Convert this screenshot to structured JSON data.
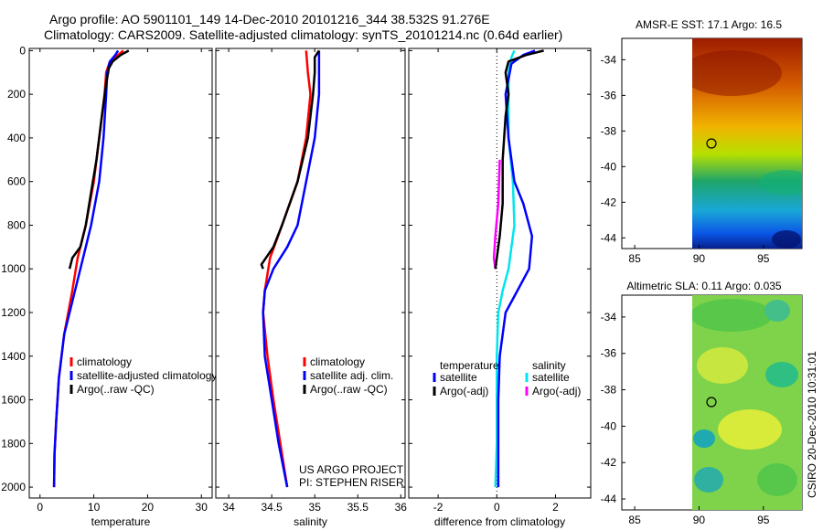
{
  "header": {
    "line1": "Argo profile: AO 5901101_149 14-Dec-2010 20101216_344 38.532S 91.276E",
    "line2": "Climatology: CARS2009. Satellite-adjusted climatology: synTS_20101214.nc (0.64d earlier)"
  },
  "side_label": "CSIRO 20-Dec-2010 10:31:01",
  "project": {
    "line1": "US ARGO PROJECT",
    "line2": "PI: STEPHEN RISER"
  },
  "colors": {
    "climatology": "#ff0000",
    "satellite": "#0000ff",
    "argo": "#000000",
    "satellite_sal": "#00e5ee",
    "argo_sal": "#ff00ff"
  },
  "chart_data": [
    {
      "type": "line",
      "name": "temperature",
      "xlabel": "temperature",
      "ylabel": "",
      "xlim": [
        -2,
        32
      ],
      "ylim": [
        2050,
        -10
      ],
      "xticks": [
        "0",
        "10",
        "20",
        "30"
      ],
      "yticks": [
        "0",
        "200",
        "400",
        "600",
        "800",
        "1000",
        "1200",
        "1400",
        "1600",
        "1800",
        "2000"
      ],
      "legend": [
        "climatology",
        "satellite-adjusted climatology",
        "Argo(..raw -QC)"
      ],
      "series": [
        {
          "name": "climatology",
          "color": "#ff0000",
          "points": [
            [
              15.5,
              0
            ],
            [
              14.5,
              20
            ],
            [
              13,
              50
            ],
            [
              12.3,
              100
            ],
            [
              12,
              200
            ],
            [
              11,
              400
            ],
            [
              10,
              600
            ],
            [
              8.5,
              800
            ],
            [
              7,
              950
            ],
            [
              6,
              1100
            ],
            [
              4.5,
              1300
            ],
            [
              3.5,
              1500
            ],
            [
              3,
              1700
            ],
            [
              2.7,
              1850
            ],
            [
              2.6,
              2000
            ]
          ]
        },
        {
          "name": "satellite-adjusted",
          "color": "#0000ff",
          "points": [
            [
              14.5,
              0
            ],
            [
              14,
              20
            ],
            [
              13,
              50
            ],
            [
              12.5,
              100
            ],
            [
              12.3,
              200
            ],
            [
              11.8,
              400
            ],
            [
              11,
              600
            ],
            [
              9.5,
              800
            ],
            [
              8.5,
              900
            ],
            [
              7.5,
              1000
            ],
            [
              6,
              1150
            ],
            [
              4.5,
              1300
            ],
            [
              3.5,
              1500
            ],
            [
              3,
              1700
            ],
            [
              2.7,
              1850
            ],
            [
              2.6,
              2000
            ]
          ]
        },
        {
          "name": "Argo",
          "color": "#000000",
          "points": [
            [
              16.5,
              0
            ],
            [
              15,
              20
            ],
            [
              13.5,
              50
            ],
            [
              12.8,
              80
            ],
            [
              12.3,
              150
            ],
            [
              11.5,
              300
            ],
            [
              10.5,
              500
            ],
            [
              9.5,
              650
            ],
            [
              8.5,
              800
            ],
            [
              7.5,
              900
            ],
            [
              6,
              950
            ],
            [
              5.5,
              1000
            ]
          ]
        }
      ]
    },
    {
      "type": "line",
      "name": "salinity",
      "xlabel": "salinity",
      "ylabel": "",
      "xlim": [
        33.85,
        36.05
      ],
      "ylim": [
        2050,
        -10
      ],
      "xticks": [
        "34",
        "34.5",
        "35",
        "35.5",
        "36"
      ],
      "legend": [
        "climatology",
        "satellite adj. clim.",
        "Argo(..raw -QC)"
      ],
      "series": [
        {
          "name": "climatology",
          "color": "#ff0000",
          "points": [
            [
              34.9,
              0
            ],
            [
              34.92,
              100
            ],
            [
              34.95,
              200
            ],
            [
              34.9,
              400
            ],
            [
              34.8,
              600
            ],
            [
              34.62,
              800
            ],
            [
              34.48,
              950
            ],
            [
              34.42,
              1100
            ],
            [
              34.4,
              1200
            ],
            [
              34.45,
              1400
            ],
            [
              34.52,
              1600
            ],
            [
              34.6,
              1800
            ],
            [
              34.68,
              2000
            ]
          ]
        },
        {
          "name": "satellite adj. clim.",
          "color": "#0000ff",
          "points": [
            [
              35.05,
              0
            ],
            [
              35.05,
              100
            ],
            [
              35.05,
              200
            ],
            [
              35,
              400
            ],
            [
              34.9,
              600
            ],
            [
              34.8,
              800
            ],
            [
              34.68,
              900
            ],
            [
              34.52,
              1000
            ],
            [
              34.42,
              1100
            ],
            [
              34.4,
              1200
            ],
            [
              34.42,
              1400
            ],
            [
              34.5,
              1600
            ],
            [
              34.58,
              1800
            ],
            [
              34.68,
              2000
            ]
          ]
        },
        {
          "name": "Argo",
          "color": "#000000",
          "points": [
            [
              35.05,
              0
            ],
            [
              35,
              30
            ],
            [
              35,
              100
            ],
            [
              34.98,
              200
            ],
            [
              34.92,
              400
            ],
            [
              34.8,
              600
            ],
            [
              34.62,
              800
            ],
            [
              34.52,
              900
            ],
            [
              34.38,
              980
            ],
            [
              34.4,
              1000
            ]
          ]
        }
      ]
    },
    {
      "type": "line",
      "name": "difference",
      "xlabel": "difference from climatology",
      "ylabel": "",
      "xlim": [
        -3,
        3.2
      ],
      "ylim": [
        2050,
        -10
      ],
      "xticks": [
        "-2",
        "0",
        "2"
      ],
      "legend_titles": [
        "temperature",
        "salinity"
      ],
      "legend": [
        "satellite",
        "Argo(-adj)",
        "satellite",
        "Argo(-adj)"
      ],
      "series": [
        {
          "name": "temperature satellite",
          "color": "#0000ff",
          "points": [
            [
              1.3,
              0
            ],
            [
              0.9,
              20
            ],
            [
              0.5,
              60
            ],
            [
              0.3,
              200
            ],
            [
              0.4,
              400
            ],
            [
              0.6,
              600
            ],
            [
              0.9,
              700
            ],
            [
              1.2,
              850
            ],
            [
              1.1,
              1000
            ],
            [
              0.7,
              1100
            ],
            [
              0.3,
              1200
            ],
            [
              0.1,
              1400
            ],
            [
              0.05,
              1600
            ],
            [
              0.05,
              1800
            ],
            [
              0.05,
              2000
            ]
          ]
        },
        {
          "name": "temperature Argo(-adj)",
          "color": "#000000",
          "points": [
            [
              1.6,
              0
            ],
            [
              1,
              20
            ],
            [
              0.4,
              50
            ],
            [
              0.3,
              100
            ],
            [
              0.4,
              200
            ],
            [
              0.3,
              300
            ],
            [
              0.2,
              500
            ],
            [
              0.2,
              700
            ],
            [
              0.1,
              850
            ],
            [
              0,
              950
            ],
            [
              -0.05,
              1000
            ]
          ]
        },
        {
          "name": "salinity satellite",
          "color": "#00e5ee",
          "points": [
            [
              0.6,
              0
            ],
            [
              0.5,
              30
            ],
            [
              0.4,
              100
            ],
            [
              0.4,
              400
            ],
            [
              0.55,
              600
            ],
            [
              0.6,
              800
            ],
            [
              0.5,
              900
            ],
            [
              0.4,
              1000
            ],
            [
              0.2,
              1100
            ],
            [
              0.05,
              1200
            ],
            [
              0,
              1400
            ],
            [
              0,
              1600
            ],
            [
              0,
              1800
            ],
            [
              -0.05,
              2000
            ]
          ]
        },
        {
          "name": "salinity Argo(-adj)",
          "color": "#ff00ff",
          "points": [
            [
              0.1,
              500
            ],
            [
              0.05,
              700
            ],
            [
              -0.05,
              850
            ],
            [
              -0.1,
              950
            ],
            [
              -0.05,
              1000
            ]
          ]
        }
      ]
    },
    {
      "type": "heatmap",
      "name": "sst-map",
      "title": "AMSR-E SST: 17.1 Argo: 16.5",
      "xticks": [
        "85",
        "90",
        "95"
      ],
      "yticks": [
        "-34",
        "-36",
        "-38",
        "-40",
        "-42",
        "-44"
      ],
      "marker": {
        "lon": 91.3,
        "lat": -38.5
      }
    },
    {
      "type": "heatmap",
      "name": "sla-map",
      "title": "Altimetric SLA: 0.11 Argo: 0.035",
      "xticks": [
        "85",
        "90",
        "95"
      ],
      "yticks": [
        "-34",
        "-36",
        "-38",
        "-40",
        "-42",
        "-44"
      ],
      "marker": {
        "lon": 91.3,
        "lat": -38.5
      }
    }
  ]
}
